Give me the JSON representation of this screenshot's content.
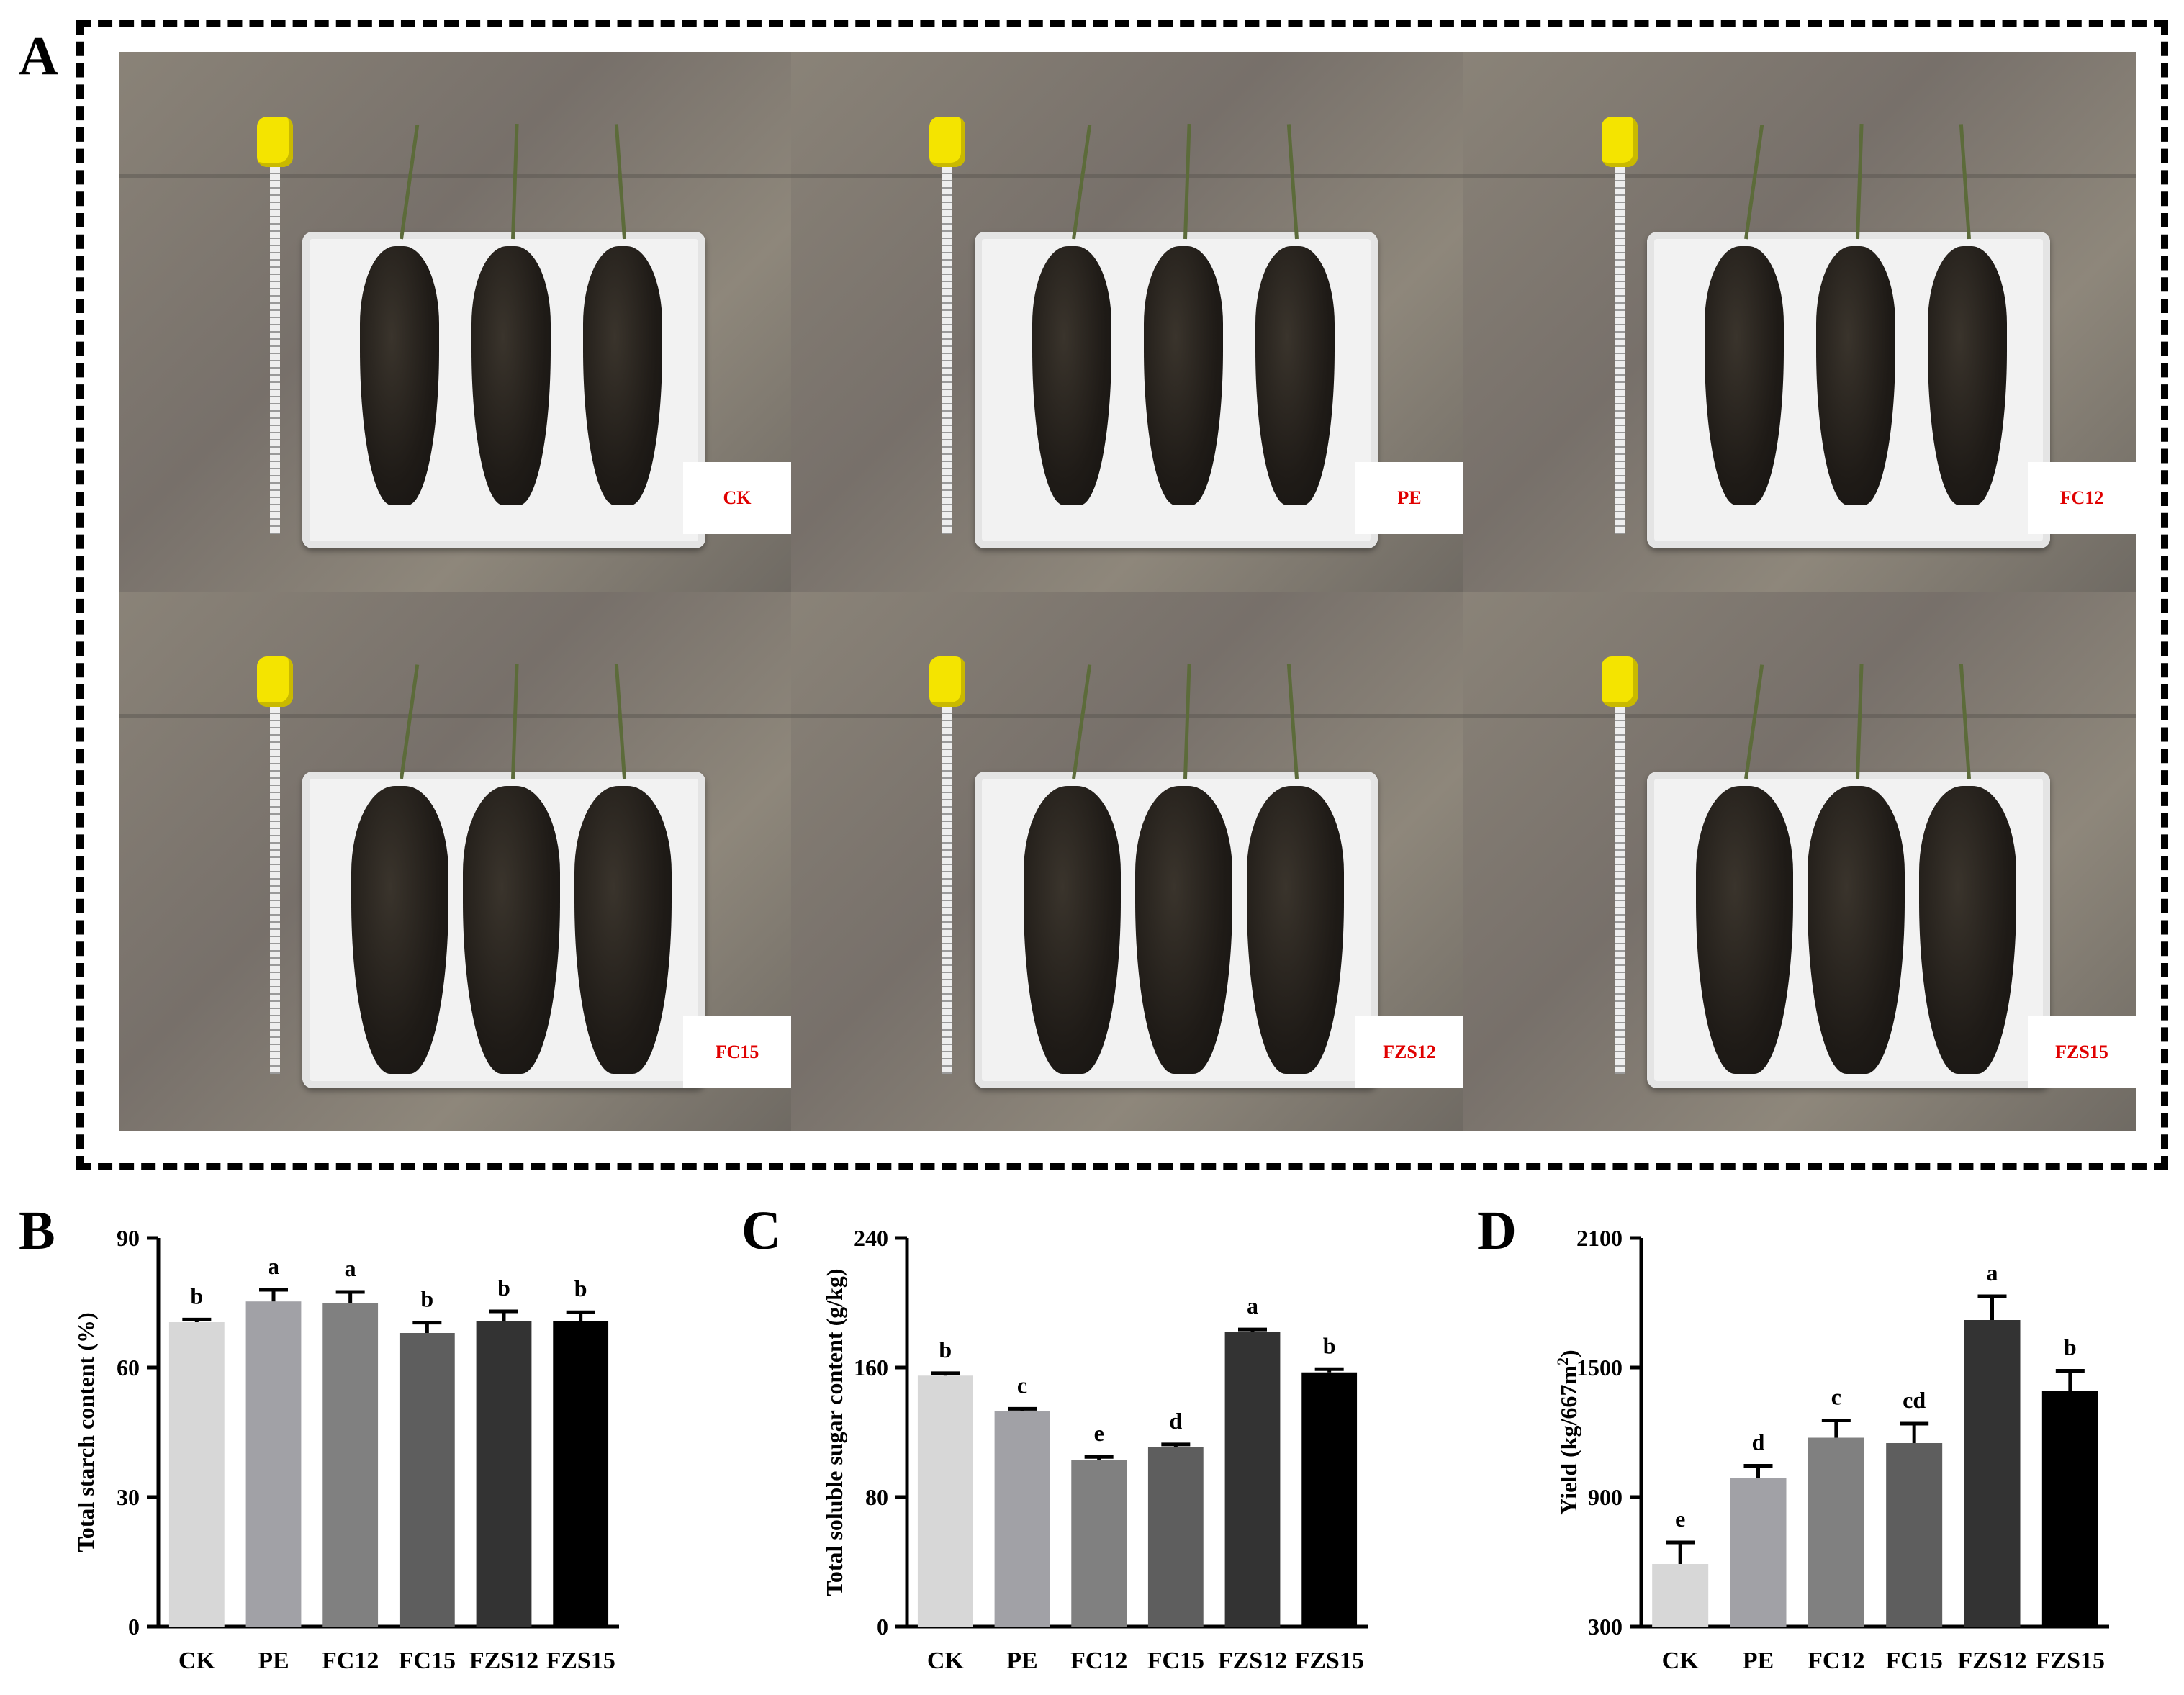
{
  "panels": {
    "a": "A",
    "b": "B",
    "c": "C",
    "d": "D"
  },
  "photos": [
    {
      "label": "CK",
      "tubers": 3
    },
    {
      "label": "PE",
      "tubers": 3
    },
    {
      "label": "FC12",
      "tubers": 3
    },
    {
      "label": "FC15",
      "tubers": 3
    },
    {
      "label": "FZS12",
      "tubers": 3
    },
    {
      "label": "FZS15",
      "tubers": 3
    }
  ],
  "colors": {
    "label_text": "#e00000",
    "bars": [
      "#d7d7d7",
      "#a1a1a6",
      "#808080",
      "#5e5e5e",
      "#333333",
      "#000000"
    ]
  },
  "chart_data": [
    {
      "type": "bar",
      "categories": [
        "CK",
        "PE",
        "FC12",
        "FC15",
        "FZS12",
        "FZS15"
      ],
      "values": [
        70.5,
        75.3,
        75.0,
        68.0,
        70.7,
        70.7
      ],
      "errors": [
        0.6,
        2.7,
        2.5,
        2.4,
        2.3,
        2.1
      ],
      "letters": [
        "b",
        "a",
        "a",
        "b",
        "b",
        "b"
      ],
      "ylabel": "Total starch content (%)",
      "ylim": [
        0,
        90
      ],
      "yticks": [
        "0",
        "30",
        "60",
        "90"
      ]
    },
    {
      "type": "bar",
      "categories": [
        "CK",
        "PE",
        "FC12",
        "FC15",
        "FZS12",
        "FZS15"
      ],
      "values": [
        155,
        133,
        103,
        111,
        182,
        157
      ],
      "errors": [
        1.5,
        1.5,
        1.8,
        1.5,
        1.5,
        2.0
      ],
      "letters": [
        "b",
        "c",
        "e",
        "d",
        "a",
        "b"
      ],
      "ylabel": "Total soluble sugar content (g/kg)",
      "ylim": [
        0,
        240
      ],
      "yticks": [
        "0",
        "80",
        "160",
        "240"
      ]
    },
    {
      "type": "bar",
      "categories": [
        "CK",
        "PE",
        "FC12",
        "FC15",
        "FZS12",
        "FZS15"
      ],
      "values": [
        590,
        990,
        1175,
        1150,
        1720,
        1390
      ],
      "errors": [
        100,
        55,
        80,
        90,
        110,
        95
      ],
      "letters": [
        "e",
        "d",
        "c",
        "cd",
        "a",
        "b"
      ],
      "ylabel": "Yield (kg/667m",
      "ylabel_sup": "2",
      "ylabel_end": ")",
      "ylim": [
        300,
        2100
      ],
      "yticks": [
        "300",
        "900",
        "1500",
        "2100"
      ]
    }
  ]
}
